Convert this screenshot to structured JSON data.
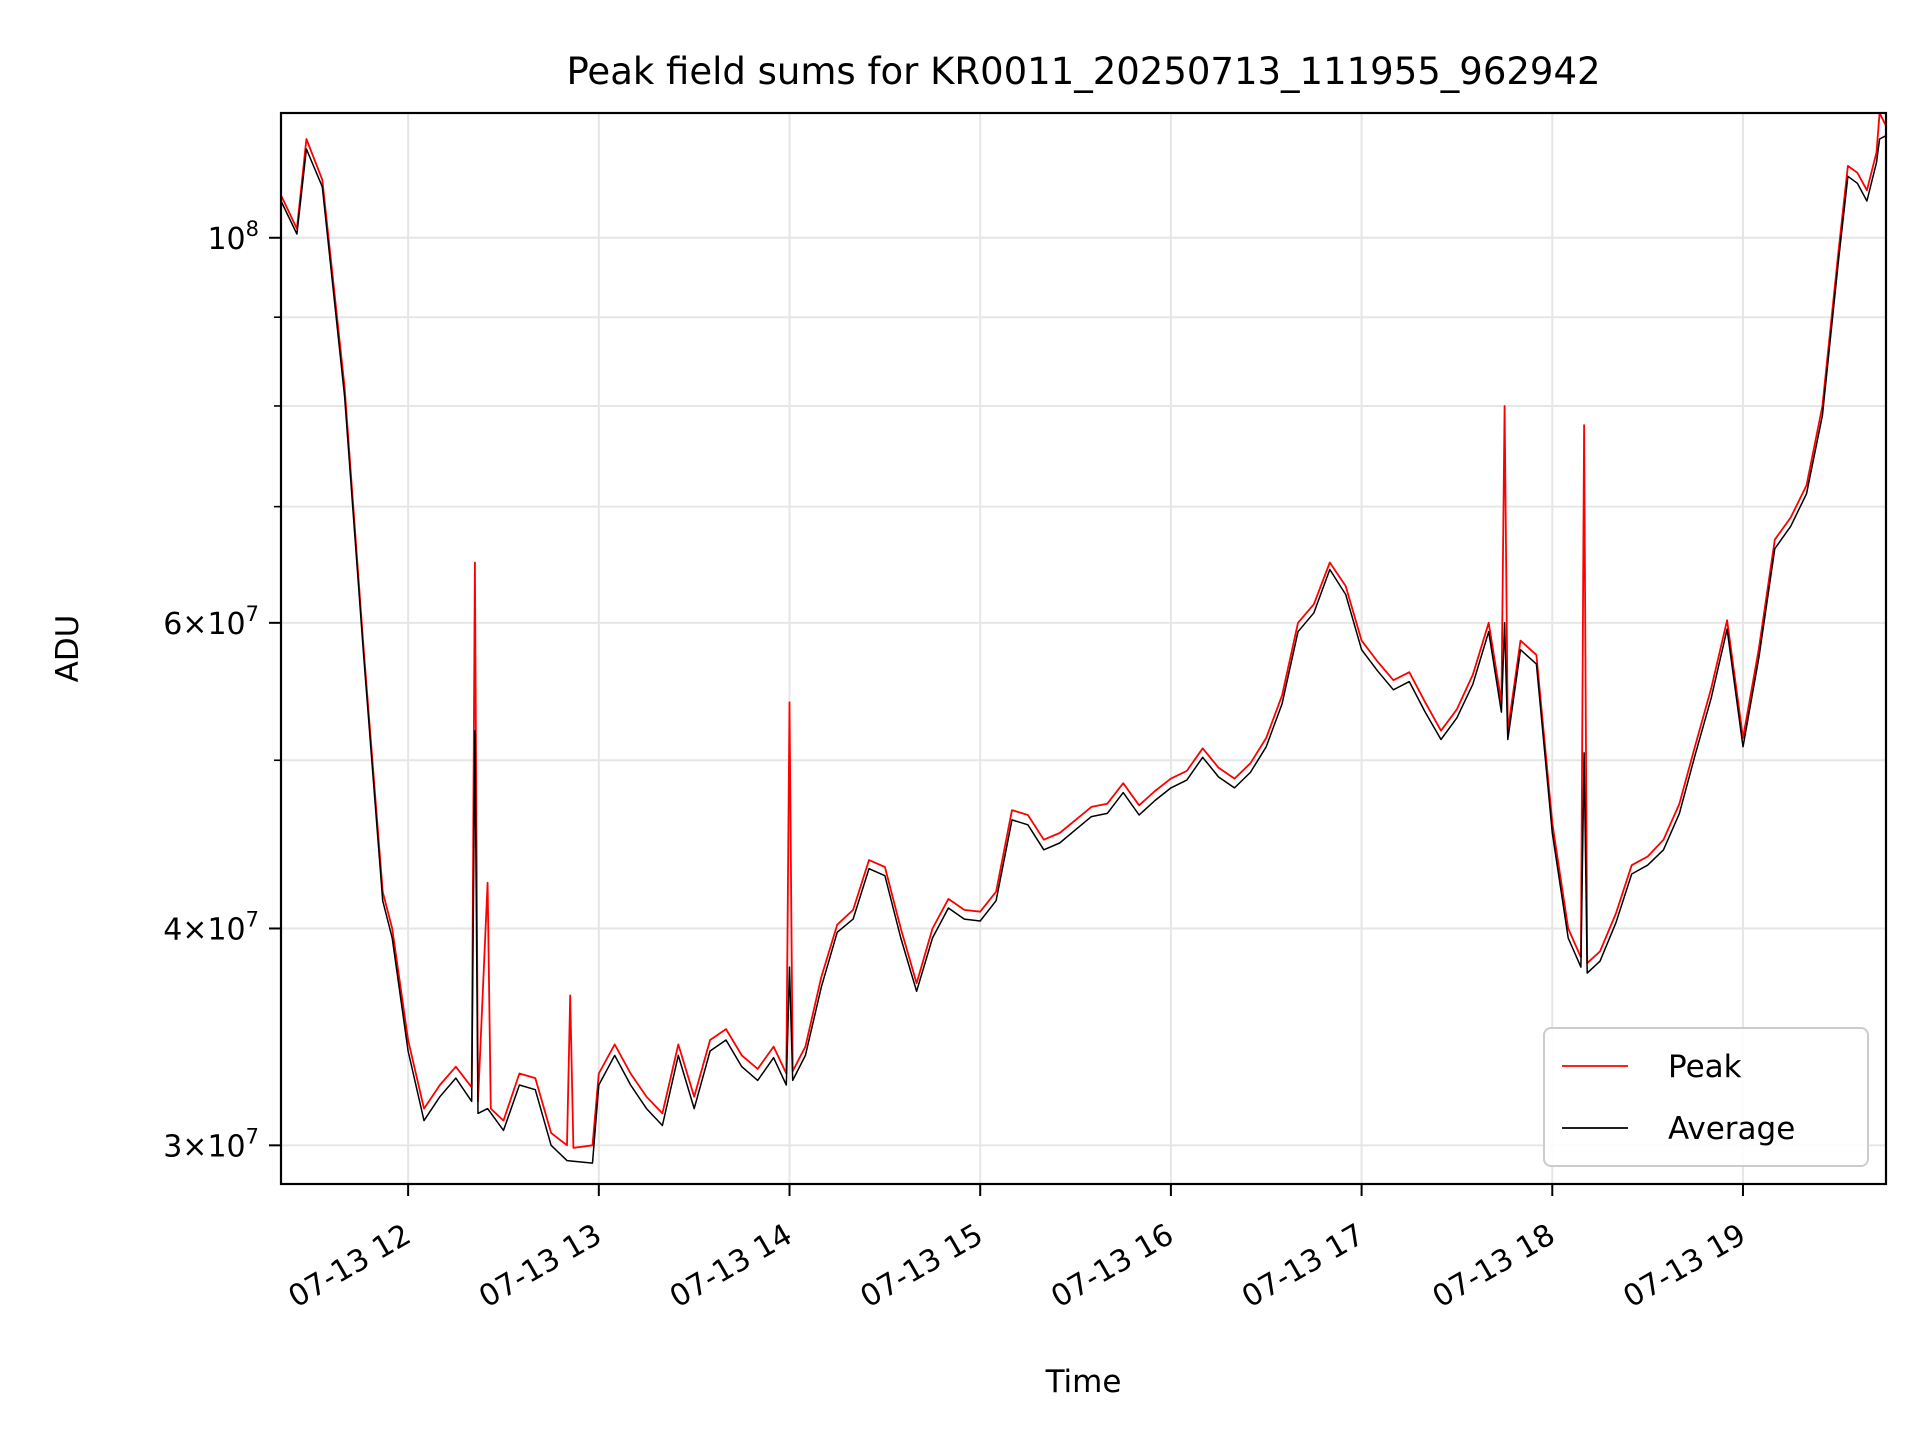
{
  "chart_data": {
    "type": "line",
    "title": "Peak field sums for KR0011_20250713_111955_962942",
    "xlabel": "Time",
    "ylabel": "ADU",
    "yscale": "log",
    "grid": true,
    "legend_position": "lower-right",
    "xlim": [
      "2025-07-13 11:20",
      "2025-07-13 19:45"
    ],
    "ylim": [
      28500000,
      118000000
    ],
    "x_ticks": [
      {
        "value": "2025-07-13 12:00",
        "label": "07-13 12"
      },
      {
        "value": "2025-07-13 13:00",
        "label": "07-13 13"
      },
      {
        "value": "2025-07-13 14:00",
        "label": "07-13 14"
      },
      {
        "value": "2025-07-13 15:00",
        "label": "07-13 15"
      },
      {
        "value": "2025-07-13 16:00",
        "label": "07-13 16"
      },
      {
        "value": "2025-07-13 17:00",
        "label": "07-13 17"
      },
      {
        "value": "2025-07-13 18:00",
        "label": "07-13 18"
      },
      {
        "value": "2025-07-13 19:00",
        "label": "07-13 19"
      }
    ],
    "y_ticks_major": [
      {
        "value": 30000000,
        "mantissa": "3",
        "exponent": "7"
      },
      {
        "value": 40000000,
        "mantissa": "4",
        "exponent": "7"
      },
      {
        "value": 60000000,
        "mantissa": "6",
        "exponent": "7"
      },
      {
        "value": 100000000,
        "mantissa": "",
        "exponent": "8"
      }
    ],
    "y_ticks_minor": [
      50000000,
      70000000,
      80000000,
      90000000
    ],
    "series": [
      {
        "name": "Peak",
        "color": "#ff0000",
        "points": [
          [
            "2025-07-13 11:20",
            105800000
          ],
          [
            "2025-07-13 11:25",
            101200000
          ],
          [
            "2025-07-13 11:28",
            114000000
          ],
          [
            "2025-07-13 11:33",
            108000000
          ],
          [
            "2025-07-13 11:40",
            82000000
          ],
          [
            "2025-07-13 11:46",
            58000000
          ],
          [
            "2025-07-13 11:52",
            42000000
          ],
          [
            "2025-07-13 11:55",
            40000000
          ],
          [
            "2025-07-13 12:00",
            34500000
          ],
          [
            "2025-07-13 12:05",
            31500000
          ],
          [
            "2025-07-13 12:10",
            32500000
          ],
          [
            "2025-07-13 12:15",
            33300000
          ],
          [
            "2025-07-13 12:20",
            32400000
          ],
          [
            "2025-07-13 12:21",
            65000000
          ],
          [
            "2025-07-13 12:22",
            31800000
          ],
          [
            "2025-07-13 12:25",
            42500000
          ],
          [
            "2025-07-13 12:26",
            31500000
          ],
          [
            "2025-07-13 12:30",
            31000000
          ],
          [
            "2025-07-13 12:35",
            33000000
          ],
          [
            "2025-07-13 12:40",
            32800000
          ],
          [
            "2025-07-13 12:45",
            30500000
          ],
          [
            "2025-07-13 12:50",
            30000000
          ],
          [
            "2025-07-13 12:51",
            36600000
          ],
          [
            "2025-07-13 12:52",
            29900000
          ],
          [
            "2025-07-13 12:58",
            30000000
          ],
          [
            "2025-07-13 13:00",
            33000000
          ],
          [
            "2025-07-13 13:05",
            34300000
          ],
          [
            "2025-07-13 13:10",
            33000000
          ],
          [
            "2025-07-13 13:15",
            32000000
          ],
          [
            "2025-07-13 13:20",
            31300000
          ],
          [
            "2025-07-13 13:25",
            34300000
          ],
          [
            "2025-07-13 13:30",
            32000000
          ],
          [
            "2025-07-13 13:35",
            34500000
          ],
          [
            "2025-07-13 13:40",
            35000000
          ],
          [
            "2025-07-13 13:45",
            33800000
          ],
          [
            "2025-07-13 13:50",
            33200000
          ],
          [
            "2025-07-13 13:55",
            34200000
          ],
          [
            "2025-07-13 13:59",
            33000000
          ],
          [
            "2025-07-13 14:00",
            54000000
          ],
          [
            "2025-07-13 14:01",
            33100000
          ],
          [
            "2025-07-13 14:05",
            34200000
          ],
          [
            "2025-07-13 14:10",
            37500000
          ],
          [
            "2025-07-13 14:15",
            40200000
          ],
          [
            "2025-07-13 14:20",
            41000000
          ],
          [
            "2025-07-13 14:25",
            43800000
          ],
          [
            "2025-07-13 14:30",
            43400000
          ],
          [
            "2025-07-13 14:35",
            40000000
          ],
          [
            "2025-07-13 14:40",
            37200000
          ],
          [
            "2025-07-13 14:45",
            40000000
          ],
          [
            "2025-07-13 14:50",
            41600000
          ],
          [
            "2025-07-13 14:55",
            41000000
          ],
          [
            "2025-07-13 15:00",
            40900000
          ],
          [
            "2025-07-13 15:05",
            42000000
          ],
          [
            "2025-07-13 15:10",
            46800000
          ],
          [
            "2025-07-13 15:15",
            46500000
          ],
          [
            "2025-07-13 15:20",
            45000000
          ],
          [
            "2025-07-13 15:25",
            45400000
          ],
          [
            "2025-07-13 15:30",
            46200000
          ],
          [
            "2025-07-13 15:35",
            47000000
          ],
          [
            "2025-07-13 15:40",
            47200000
          ],
          [
            "2025-07-13 15:45",
            48500000
          ],
          [
            "2025-07-13 15:50",
            47100000
          ],
          [
            "2025-07-13 15:55",
            48000000
          ],
          [
            "2025-07-13 16:00",
            48800000
          ],
          [
            "2025-07-13 16:05",
            49300000
          ],
          [
            "2025-07-13 16:10",
            50800000
          ],
          [
            "2025-07-13 16:15",
            49500000
          ],
          [
            "2025-07-13 16:20",
            48800000
          ],
          [
            "2025-07-13 16:25",
            49800000
          ],
          [
            "2025-07-13 16:30",
            51500000
          ],
          [
            "2025-07-13 16:35",
            54500000
          ],
          [
            "2025-07-13 16:40",
            60000000
          ],
          [
            "2025-07-13 16:45",
            61500000
          ],
          [
            "2025-07-13 16:50",
            65000000
          ],
          [
            "2025-07-13 16:55",
            63000000
          ],
          [
            "2025-07-13 17:00",
            58600000
          ],
          [
            "2025-07-13 17:05",
            57000000
          ],
          [
            "2025-07-13 17:10",
            55600000
          ],
          [
            "2025-07-13 17:15",
            56200000
          ],
          [
            "2025-07-13 17:20",
            54000000
          ],
          [
            "2025-07-13 17:25",
            52000000
          ],
          [
            "2025-07-13 17:30",
            53500000
          ],
          [
            "2025-07-13 17:35",
            56000000
          ],
          [
            "2025-07-13 17:40",
            60000000
          ],
          [
            "2025-07-13 17:44",
            54000000
          ],
          [
            "2025-07-13 17:45",
            80000000
          ],
          [
            "2025-07-13 17:46",
            52000000
          ],
          [
            "2025-07-13 17:50",
            58600000
          ],
          [
            "2025-07-13 17:55",
            57500000
          ],
          [
            "2025-07-13 18:00",
            46000000
          ],
          [
            "2025-07-13 18:05",
            40000000
          ],
          [
            "2025-07-13 18:09",
            38500000
          ],
          [
            "2025-07-13 18:10",
            78000000
          ],
          [
            "2025-07-13 18:11",
            38200000
          ],
          [
            "2025-07-13 18:15",
            38800000
          ],
          [
            "2025-07-13 18:20",
            40800000
          ],
          [
            "2025-07-13 18:25",
            43500000
          ],
          [
            "2025-07-13 18:30",
            44000000
          ],
          [
            "2025-07-13 18:35",
            45000000
          ],
          [
            "2025-07-13 18:40",
            47200000
          ],
          [
            "2025-07-13 18:45",
            51000000
          ],
          [
            "2025-07-13 18:50",
            55000000
          ],
          [
            "2025-07-13 18:55",
            60200000
          ],
          [
            "2025-07-13 19:00",
            51500000
          ],
          [
            "2025-07-13 19:05",
            58000000
          ],
          [
            "2025-07-13 19:10",
            67000000
          ],
          [
            "2025-07-13 19:15",
            69000000
          ],
          [
            "2025-07-13 19:20",
            72000000
          ],
          [
            "2025-07-13 19:25",
            80000000
          ],
          [
            "2025-07-13 19:30",
            98000000
          ],
          [
            "2025-07-13 19:33",
            110000000
          ],
          [
            "2025-07-13 19:36",
            109000000
          ],
          [
            "2025-07-13 19:39",
            106500000
          ],
          [
            "2025-07-13 19:42",
            112000000
          ],
          [
            "2025-07-13 19:43",
            118000000
          ],
          [
            "2025-07-13 19:45",
            116000000
          ]
        ]
      },
      {
        "name": "Average",
        "color": "#000000",
        "points": [
          [
            "2025-07-13 11:20",
            105000000
          ],
          [
            "2025-07-13 11:25",
            100500000
          ],
          [
            "2025-07-13 11:28",
            112500000
          ],
          [
            "2025-07-13 11:33",
            107000000
          ],
          [
            "2025-07-13 11:40",
            81000000
          ],
          [
            "2025-07-13 11:46",
            57500000
          ],
          [
            "2025-07-13 11:52",
            41500000
          ],
          [
            "2025-07-13 11:55",
            39500000
          ],
          [
            "2025-07-13 12:00",
            34000000
          ],
          [
            "2025-07-13 12:05",
            31000000
          ],
          [
            "2025-07-13 12:10",
            32000000
          ],
          [
            "2025-07-13 12:15",
            32800000
          ],
          [
            "2025-07-13 12:20",
            31800000
          ],
          [
            "2025-07-13 12:21",
            52000000
          ],
          [
            "2025-07-13 12:22",
            31300000
          ],
          [
            "2025-07-13 12:25",
            31500000
          ],
          [
            "2025-07-13 12:30",
            30600000
          ],
          [
            "2025-07-13 12:35",
            32500000
          ],
          [
            "2025-07-13 12:40",
            32300000
          ],
          [
            "2025-07-13 12:45",
            30000000
          ],
          [
            "2025-07-13 12:50",
            29400000
          ],
          [
            "2025-07-13 12:58",
            29300000
          ],
          [
            "2025-07-13 13:00",
            32500000
          ],
          [
            "2025-07-13 13:05",
            33800000
          ],
          [
            "2025-07-13 13:10",
            32500000
          ],
          [
            "2025-07-13 13:15",
            31500000
          ],
          [
            "2025-07-13 13:20",
            30800000
          ],
          [
            "2025-07-13 13:25",
            33800000
          ],
          [
            "2025-07-13 13:30",
            31500000
          ],
          [
            "2025-07-13 13:35",
            34000000
          ],
          [
            "2025-07-13 13:40",
            34500000
          ],
          [
            "2025-07-13 13:45",
            33300000
          ],
          [
            "2025-07-13 13:50",
            32700000
          ],
          [
            "2025-07-13 13:55",
            33700000
          ],
          [
            "2025-07-13 13:59",
            32500000
          ],
          [
            "2025-07-13 14:00",
            38000000
          ],
          [
            "2025-07-13 14:01",
            32700000
          ],
          [
            "2025-07-13 14:05",
            33800000
          ],
          [
            "2025-07-13 14:10",
            37000000
          ],
          [
            "2025-07-13 14:15",
            39800000
          ],
          [
            "2025-07-13 14:20",
            40500000
          ],
          [
            "2025-07-13 14:25",
            43300000
          ],
          [
            "2025-07-13 14:30",
            42900000
          ],
          [
            "2025-07-13 14:35",
            39500000
          ],
          [
            "2025-07-13 14:40",
            36800000
          ],
          [
            "2025-07-13 14:45",
            39500000
          ],
          [
            "2025-07-13 14:50",
            41100000
          ],
          [
            "2025-07-13 14:55",
            40500000
          ],
          [
            "2025-07-13 15:00",
            40400000
          ],
          [
            "2025-07-13 15:05",
            41500000
          ],
          [
            "2025-07-13 15:10",
            46200000
          ],
          [
            "2025-07-13 15:15",
            45900000
          ],
          [
            "2025-07-13 15:20",
            44400000
          ],
          [
            "2025-07-13 15:25",
            44800000
          ],
          [
            "2025-07-13 15:30",
            45600000
          ],
          [
            "2025-07-13 15:35",
            46400000
          ],
          [
            "2025-07-13 15:40",
            46600000
          ],
          [
            "2025-07-13 15:45",
            47900000
          ],
          [
            "2025-07-13 15:50",
            46500000
          ],
          [
            "2025-07-13 15:55",
            47400000
          ],
          [
            "2025-07-13 16:00",
            48200000
          ],
          [
            "2025-07-13 16:05",
            48700000
          ],
          [
            "2025-07-13 16:10",
            50200000
          ],
          [
            "2025-07-13 16:15",
            48900000
          ],
          [
            "2025-07-13 16:20",
            48200000
          ],
          [
            "2025-07-13 16:25",
            49200000
          ],
          [
            "2025-07-13 16:30",
            50900000
          ],
          [
            "2025-07-13 16:35",
            53900000
          ],
          [
            "2025-07-13 16:40",
            59300000
          ],
          [
            "2025-07-13 16:45",
            60800000
          ],
          [
            "2025-07-13 16:50",
            64400000
          ],
          [
            "2025-07-13 16:55",
            62300000
          ],
          [
            "2025-07-13 17:00",
            57900000
          ],
          [
            "2025-07-13 17:05",
            56300000
          ],
          [
            "2025-07-13 17:10",
            54900000
          ],
          [
            "2025-07-13 17:15",
            55500000
          ],
          [
            "2025-07-13 17:20",
            53300000
          ],
          [
            "2025-07-13 17:25",
            51400000
          ],
          [
            "2025-07-13 17:30",
            52900000
          ],
          [
            "2025-07-13 17:35",
            55300000
          ],
          [
            "2025-07-13 17:40",
            59300000
          ],
          [
            "2025-07-13 17:44",
            53300000
          ],
          [
            "2025-07-13 17:45",
            60000000
          ],
          [
            "2025-07-13 17:46",
            51400000
          ],
          [
            "2025-07-13 17:50",
            57900000
          ],
          [
            "2025-07-13 17:55",
            56800000
          ],
          [
            "2025-07-13 18:00",
            45400000
          ],
          [
            "2025-07-13 18:05",
            39500000
          ],
          [
            "2025-07-13 18:09",
            38000000
          ],
          [
            "2025-07-13 18:10",
            50500000
          ],
          [
            "2025-07-13 18:11",
            37700000
          ],
          [
            "2025-07-13 18:15",
            38300000
          ],
          [
            "2025-07-13 18:20",
            40300000
          ],
          [
            "2025-07-13 18:25",
            43000000
          ],
          [
            "2025-07-13 18:30",
            43500000
          ],
          [
            "2025-07-13 18:35",
            44400000
          ],
          [
            "2025-07-13 18:40",
            46600000
          ],
          [
            "2025-07-13 18:45",
            50400000
          ],
          [
            "2025-07-13 18:50",
            54300000
          ],
          [
            "2025-07-13 18:55",
            59500000
          ],
          [
            "2025-07-13 19:00",
            50900000
          ],
          [
            "2025-07-13 19:05",
            57300000
          ],
          [
            "2025-07-13 19:10",
            66200000
          ],
          [
            "2025-07-13 19:15",
            68200000
          ],
          [
            "2025-07-13 19:20",
            71200000
          ],
          [
            "2025-07-13 19:25",
            79000000
          ],
          [
            "2025-07-13 19:30",
            96800000
          ],
          [
            "2025-07-13 19:33",
            108500000
          ],
          [
            "2025-07-13 19:36",
            107500000
          ],
          [
            "2025-07-13 19:39",
            105000000
          ],
          [
            "2025-07-13 19:42",
            110500000
          ],
          [
            "2025-07-13 19:43",
            114000000
          ],
          [
            "2025-07-13 19:45",
            114500000
          ]
        ]
      }
    ]
  }
}
